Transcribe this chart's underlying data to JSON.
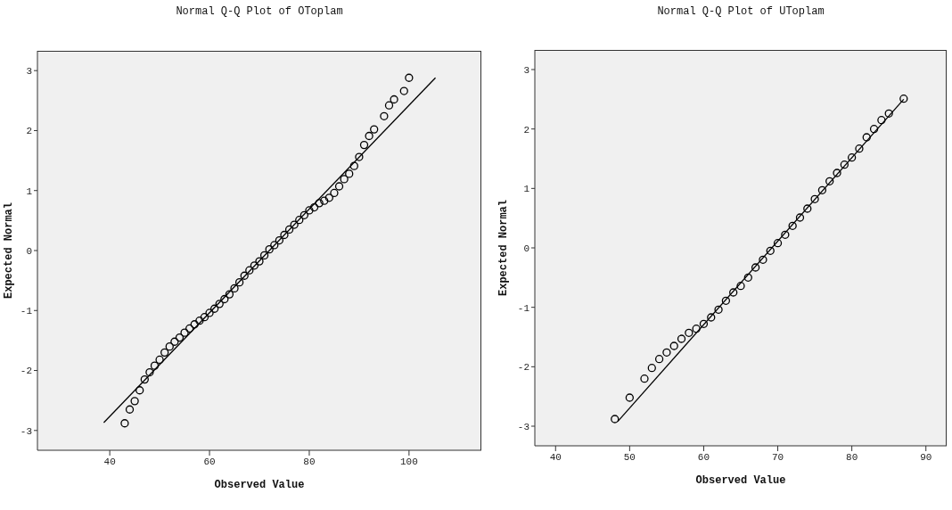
{
  "chart_data": [
    {
      "type": "scatter",
      "title": "Normal Q-Q Plot of OToplam",
      "xlabel": "Observed Value",
      "ylabel": "Expected Normal",
      "xlim": [
        25.5,
        114.5
      ],
      "xticks": [
        40,
        60,
        80,
        100
      ],
      "ylim": [
        -3.33,
        3.33
      ],
      "yticks": [
        -3,
        -2,
        -1,
        0,
        1,
        2,
        3
      ],
      "series": [
        {
          "marker": "circle",
          "color": "#000000",
          "x": [
            43,
            44,
            45,
            46,
            47,
            48,
            49,
            50,
            51,
            52,
            53,
            54,
            55,
            56,
            57,
            58,
            59,
            60,
            61,
            62,
            63,
            64,
            65,
            66,
            67,
            68,
            69,
            70,
            71,
            72,
            73,
            74,
            75,
            76,
            77,
            78,
            79,
            80,
            81,
            82,
            83,
            84,
            85,
            86,
            87,
            88,
            89,
            90,
            91,
            92,
            93,
            95,
            96,
            97,
            99,
            100
          ],
          "values": [
            -2.88,
            -2.65,
            -2.51,
            -2.33,
            -2.15,
            -2.03,
            -1.92,
            -1.82,
            -1.7,
            -1.6,
            -1.52,
            -1.45,
            -1.37,
            -1.3,
            -1.23,
            -1.17,
            -1.11,
            -1.04,
            -0.97,
            -0.89,
            -0.81,
            -0.73,
            -0.63,
            -0.53,
            -0.42,
            -0.33,
            -0.25,
            -0.18,
            -0.08,
            0.02,
            0.09,
            0.17,
            0.26,
            0.35,
            0.43,
            0.51,
            0.59,
            0.67,
            0.72,
            0.79,
            0.83,
            0.88,
            0.96,
            1.07,
            1.19,
            1.28,
            1.41,
            1.56,
            1.76,
            1.91,
            2.02,
            2.24,
            2.42,
            2.52,
            2.66,
            2.88
          ]
        },
        {
          "type": "line",
          "color": "#000000",
          "x": [
            38.8,
            105.3
          ],
          "values": [
            -2.87,
            2.88
          ]
        }
      ]
    },
    {
      "type": "scatter",
      "title": "Normal Q-Q Plot of UToplam",
      "xlabel": "Observed Value",
      "ylabel": "Expected Normal",
      "xlim": [
        37.2,
        92.8
      ],
      "xticks": [
        40,
        50,
        60,
        70,
        80,
        90
      ],
      "ylim": [
        -3.33,
        3.33
      ],
      "yticks": [
        -3,
        -2,
        -1,
        0,
        1,
        2,
        3
      ],
      "series": [
        {
          "marker": "circle",
          "color": "#000000",
          "x": [
            48,
            50,
            52,
            53,
            54,
            55,
            56,
            57,
            58,
            59,
            60,
            61,
            62,
            63,
            64,
            65,
            66,
            67,
            68,
            69,
            70,
            71,
            72,
            73,
            74,
            75,
            76,
            77,
            78,
            79,
            80,
            81,
            82,
            83,
            84,
            85,
            87
          ],
          "values": [
            -2.88,
            -2.52,
            -2.2,
            -2.02,
            -1.87,
            -1.76,
            -1.65,
            -1.53,
            -1.43,
            -1.36,
            -1.28,
            -1.17,
            -1.04,
            -0.89,
            -0.75,
            -0.64,
            -0.5,
            -0.33,
            -0.2,
            -0.05,
            0.08,
            0.22,
            0.37,
            0.51,
            0.66,
            0.82,
            0.97,
            1.12,
            1.26,
            1.4,
            1.52,
            1.67,
            1.86,
            2.0,
            2.15,
            2.26,
            2.51
          ]
        },
        {
          "type": "line",
          "color": "#000000",
          "x": [
            48.4,
            87
          ],
          "values": [
            -2.92,
            2.5
          ]
        }
      ]
    }
  ]
}
